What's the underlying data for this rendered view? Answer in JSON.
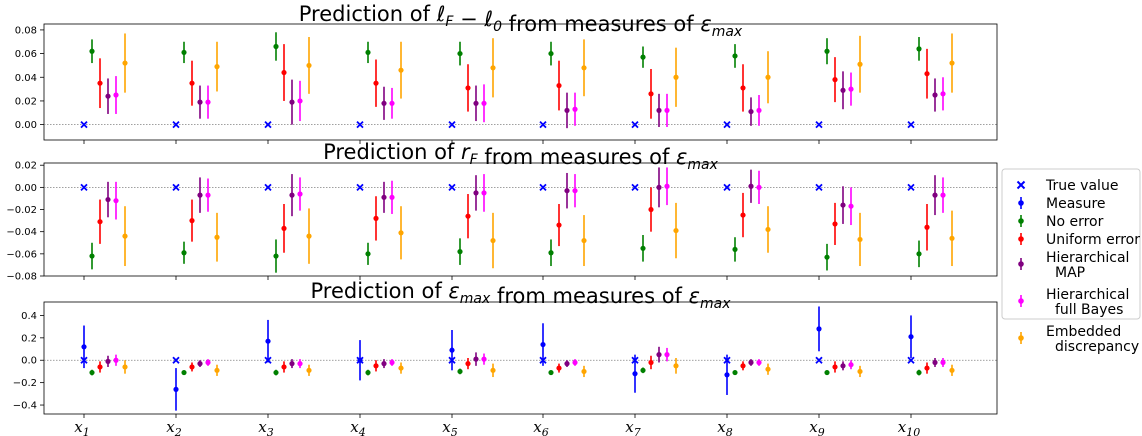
{
  "chart_data": {
    "type": "errorbar",
    "categories": [
      "x1",
      "x2",
      "x3",
      "x4",
      "x5",
      "x6",
      "x7",
      "x8",
      "x9",
      "x10"
    ],
    "legend": {
      "placement": "right",
      "entries": [
        {
          "key": "true",
          "label": "True value",
          "color": "#0000ff",
          "marker": "x"
        },
        {
          "key": "measure",
          "label": "Measure",
          "color": "#0000ff",
          "marker": "dot"
        },
        {
          "key": "noerr",
          "label": "No error",
          "color": "#008000",
          "marker": "dot"
        },
        {
          "key": "unif",
          "label": "Uniform error",
          "color": "#ff0000",
          "marker": "dot"
        },
        {
          "key": "hmap",
          "label": "Hierarchical\nMAP",
          "color": "#800080",
          "marker": "dot"
        },
        {
          "key": "hfb",
          "label": "Hierarchical\nfull Bayes",
          "color": "#ff00ff",
          "marker": "dot"
        },
        {
          "key": "emb",
          "label": "Embedded\ndiscrepancy",
          "color": "#ffa500",
          "marker": "dot"
        }
      ]
    },
    "panels": [
      {
        "title_parts": [
          "Prediction of ",
          "ℓ",
          "F",
          " − ",
          "ℓ",
          "0",
          " from measures of ",
          "ε",
          "max"
        ],
        "ylim": [
          -0.013,
          0.085
        ],
        "yticks": [
          "0.00",
          "0.02",
          "0.04",
          "0.06",
          "0.08"
        ],
        "ytick_values": [
          0.0,
          0.02,
          0.04,
          0.06,
          0.08
        ],
        "zero_line": 0,
        "series": [
          {
            "key": "true",
            "values": [
              0,
              0,
              0,
              0,
              0,
              0,
              0,
              0,
              0,
              0
            ]
          },
          {
            "key": "noerr",
            "values": [
              0.062,
              0.061,
              0.066,
              0.061,
              0.06,
              0.06,
              0.057,
              0.058,
              0.062,
              0.064
            ],
            "err": [
              0.01,
              0.009,
              0.012,
              0.009,
              0.01,
              0.01,
              0.009,
              0.01,
              0.011,
              0.01
            ]
          },
          {
            "key": "unif",
            "values": [
              0.035,
              0.035,
              0.044,
              0.035,
              0.031,
              0.033,
              0.026,
              0.031,
              0.038,
              0.043
            ],
            "err": [
              0.021,
              0.019,
              0.024,
              0.02,
              0.02,
              0.021,
              0.021,
              0.02,
              0.019,
              0.021
            ]
          },
          {
            "key": "hmap",
            "values": [
              0.024,
              0.019,
              0.019,
              0.018,
              0.018,
              0.012,
              0.012,
              0.011,
              0.029,
              0.025
            ],
            "err": [
              0.015,
              0.014,
              0.019,
              0.014,
              0.015,
              0.015,
              0.014,
              0.012,
              0.016,
              0.014
            ]
          },
          {
            "key": "hfb",
            "values": [
              0.025,
              0.019,
              0.02,
              0.018,
              0.018,
              0.013,
              0.012,
              0.012,
              0.03,
              0.026
            ],
            "err": [
              0.016,
              0.014,
              0.017,
              0.013,
              0.016,
              0.014,
              0.014,
              0.013,
              0.014,
              0.014
            ]
          },
          {
            "key": "emb",
            "values": [
              0.052,
              0.049,
              0.05,
              0.046,
              0.048,
              0.048,
              0.04,
              0.04,
              0.051,
              0.052
            ],
            "err": [
              0.025,
              0.021,
              0.024,
              0.024,
              0.025,
              0.024,
              0.025,
              0.022,
              0.024,
              0.025
            ]
          }
        ]
      },
      {
        "title_parts": [
          "Prediction of ",
          "r",
          "F",
          " from measures of ",
          "ε",
          "max"
        ],
        "ylim": [
          -0.08,
          0.022
        ],
        "yticks": [
          "0.02",
          "0.00",
          "−0.02",
          "−0.04",
          "−0.06",
          "−0.08"
        ],
        "ytick_values": [
          0.02,
          0.0,
          -0.02,
          -0.04,
          -0.06,
          -0.08
        ],
        "zero_line": 0,
        "series": [
          {
            "key": "true",
            "values": [
              0,
              0,
              0,
              0,
              0,
              0,
              0,
              0,
              0,
              0
            ]
          },
          {
            "key": "noerr",
            "values": [
              -0.062,
              -0.059,
              -0.062,
              -0.06,
              -0.058,
              -0.059,
              -0.055,
              -0.056,
              -0.063,
              -0.06
            ],
            "err": [
              0.012,
              0.01,
              0.015,
              0.01,
              0.012,
              0.012,
              0.012,
              0.011,
              0.012,
              0.012
            ]
          },
          {
            "key": "unif",
            "values": [
              -0.031,
              -0.03,
              -0.037,
              -0.028,
              -0.026,
              -0.034,
              -0.02,
              -0.025,
              -0.033,
              -0.036
            ],
            "err": [
              0.02,
              0.019,
              0.022,
              0.02,
              0.02,
              0.019,
              0.02,
              0.02,
              0.019,
              0.021
            ]
          },
          {
            "key": "hmap",
            "values": [
              -0.011,
              -0.007,
              -0.007,
              -0.009,
              -0.005,
              -0.003,
              0.0,
              0.001,
              -0.016,
              -0.007
            ],
            "err": [
              0.016,
              0.016,
              0.019,
              0.014,
              0.016,
              0.016,
              0.018,
              0.015,
              0.017,
              0.018
            ]
          },
          {
            "key": "hfb",
            "values": [
              -0.012,
              -0.007,
              -0.006,
              -0.009,
              -0.005,
              -0.003,
              0.001,
              0.0,
              -0.017,
              -0.007
            ],
            "err": [
              0.017,
              0.015,
              0.015,
              0.015,
              0.017,
              0.015,
              0.017,
              0.015,
              0.017,
              0.016
            ]
          },
          {
            "key": "emb",
            "values": [
              -0.044,
              -0.045,
              -0.044,
              -0.041,
              -0.048,
              -0.048,
              -0.039,
              -0.038,
              -0.047,
              -0.046
            ],
            "err": [
              0.027,
              0.022,
              0.025,
              0.024,
              0.025,
              0.023,
              0.025,
              0.021,
              0.024,
              0.025
            ]
          }
        ]
      },
      {
        "title_parts": [
          "Prediction of ",
          "ε",
          "max",
          " from measures of ",
          "ε",
          "max"
        ],
        "ylim": [
          -0.48,
          0.52
        ],
        "yticks": [
          "0.4",
          "0.2",
          "0.0",
          "−0.2",
          "−0.4"
        ],
        "ytick_values": [
          0.4,
          0.2,
          0.0,
          -0.2,
          -0.4
        ],
        "zero_line": 0,
        "series": [
          {
            "key": "true",
            "values": [
              0,
              0,
              0,
              0,
              0,
              0,
              0,
              0,
              0,
              0
            ]
          },
          {
            "key": "measure",
            "values": [
              0.12,
              -0.26,
              0.17,
              0.0,
              0.09,
              0.14,
              -0.12,
              -0.13,
              0.28,
              0.21
            ],
            "err": [
              0.19,
              0.19,
              0.19,
              0.18,
              0.18,
              0.19,
              0.17,
              0.18,
              0.2,
              0.19
            ]
          },
          {
            "key": "noerr",
            "values": [
              -0.11,
              -0.11,
              -0.11,
              -0.11,
              -0.1,
              -0.11,
              -0.09,
              -0.11,
              -0.11,
              -0.11
            ],
            "err": [
              0.025,
              0.02,
              0.025,
              0.025,
              0.025,
              0.02,
              0.025,
              0.02,
              0.02,
              0.025
            ]
          },
          {
            "key": "unif",
            "values": [
              -0.06,
              -0.06,
              -0.06,
              -0.05,
              -0.03,
              -0.07,
              -0.02,
              -0.05,
              -0.06,
              -0.07
            ],
            "err": [
              0.05,
              0.04,
              0.05,
              0.05,
              0.05,
              0.04,
              0.06,
              0.04,
              0.05,
              0.05
            ]
          },
          {
            "key": "hmap",
            "values": [
              -0.01,
              -0.03,
              -0.03,
              -0.03,
              0.01,
              -0.03,
              0.05,
              -0.02,
              -0.05,
              -0.02
            ],
            "err": [
              0.05,
              0.03,
              0.04,
              0.04,
              0.06,
              0.03,
              0.07,
              0.03,
              0.04,
              0.04
            ]
          },
          {
            "key": "hfb",
            "values": [
              0.0,
              -0.02,
              -0.03,
              -0.02,
              0.01,
              -0.02,
              0.05,
              -0.02,
              -0.04,
              -0.02
            ],
            "err": [
              0.05,
              0.03,
              0.04,
              0.03,
              0.05,
              0.03,
              0.06,
              0.03,
              0.04,
              0.04
            ]
          },
          {
            "key": "emb",
            "values": [
              -0.06,
              -0.09,
              -0.09,
              -0.07,
              -0.09,
              -0.1,
              -0.05,
              -0.08,
              -0.1,
              -0.09
            ],
            "err": [
              0.06,
              0.05,
              0.05,
              0.05,
              0.06,
              0.05,
              0.07,
              0.05,
              0.05,
              0.05
            ]
          }
        ]
      }
    ]
  }
}
